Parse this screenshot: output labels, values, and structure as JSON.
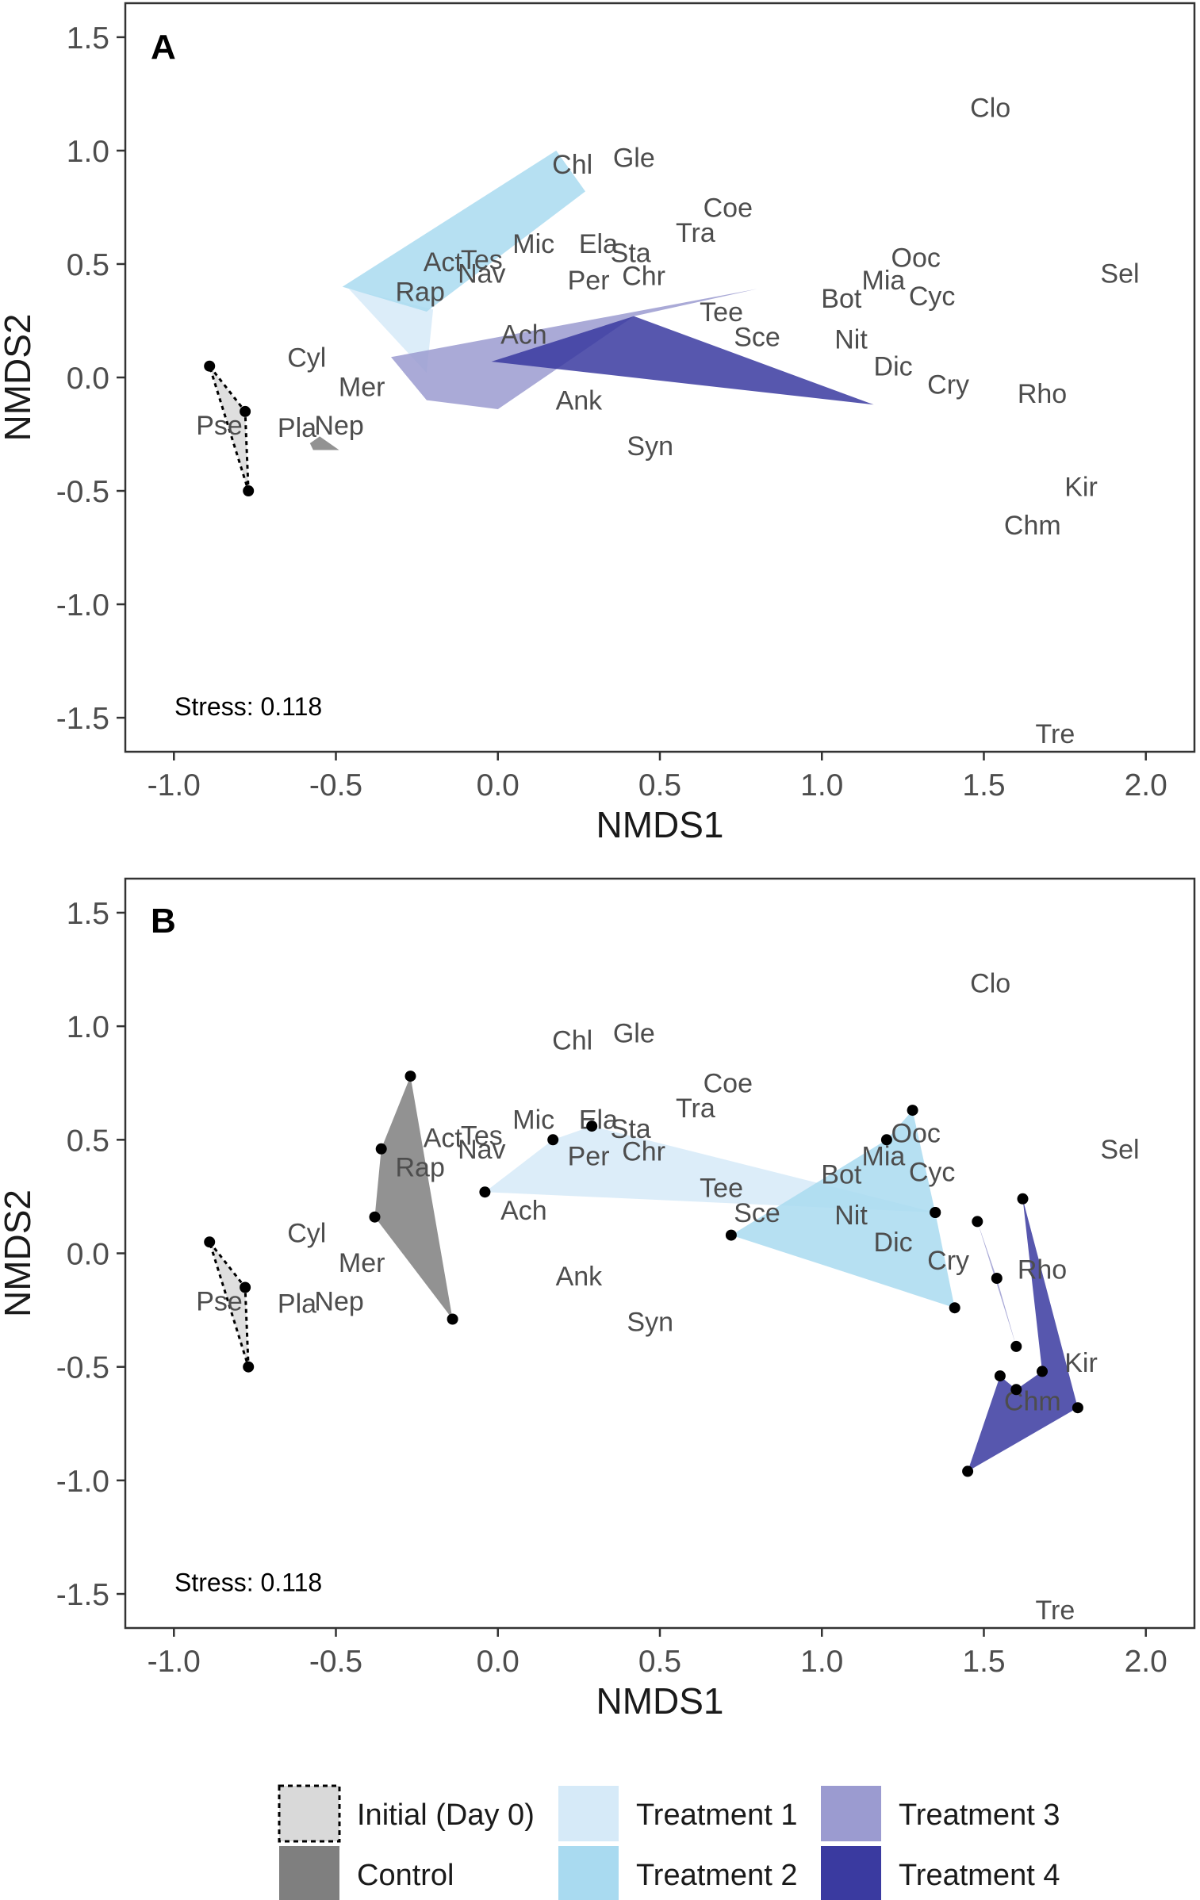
{
  "chart_data": [
    {
      "type": "scatter",
      "panel": "A",
      "xlabel": "NMDS1",
      "ylabel": "NMDS2",
      "xlim": [
        -1.15,
        2.15
      ],
      "ylim": [
        -1.65,
        1.65
      ],
      "xticks": [
        "-1.0",
        "-0.5",
        "0.0",
        "0.5",
        "1.0",
        "1.5",
        "2.0"
      ],
      "yticks": [
        "1.5",
        "1.0",
        "0.5",
        "0.0",
        "-0.5",
        "-1.0",
        "-1.5"
      ],
      "annotation": "Stress: 0.118",
      "grid": false,
      "species": [
        {
          "label": "Clo",
          "x": 1.52,
          "y": 1.19
        },
        {
          "label": "Chl",
          "x": 0.23,
          "y": 0.94
        },
        {
          "label": "Gle",
          "x": 0.42,
          "y": 0.97
        },
        {
          "label": "Coe",
          "x": 0.71,
          "y": 0.75
        },
        {
          "label": "Tra",
          "x": 0.61,
          "y": 0.64
        },
        {
          "label": "Mic",
          "x": 0.11,
          "y": 0.59
        },
        {
          "label": "Ela",
          "x": 0.31,
          "y": 0.59
        },
        {
          "label": "Sta",
          "x": 0.41,
          "y": 0.55
        },
        {
          "label": "Act",
          "x": -0.17,
          "y": 0.51
        },
        {
          "label": "Tes",
          "x": -0.05,
          "y": 0.52
        },
        {
          "label": "Nav",
          "x": -0.05,
          "y": 0.46
        },
        {
          "label": "Per",
          "x": 0.28,
          "y": 0.43
        },
        {
          "label": "Chr",
          "x": 0.45,
          "y": 0.45
        },
        {
          "label": "Rap",
          "x": -0.24,
          "y": 0.38
        },
        {
          "label": "Ooc",
          "x": 1.29,
          "y": 0.53
        },
        {
          "label": "Mia",
          "x": 1.19,
          "y": 0.43
        },
        {
          "label": "Cyc",
          "x": 1.34,
          "y": 0.36
        },
        {
          "label": "Bot",
          "x": 1.06,
          "y": 0.35
        },
        {
          "label": "Sel",
          "x": 1.92,
          "y": 0.46
        },
        {
          "label": "Tee",
          "x": 0.69,
          "y": 0.29
        },
        {
          "label": "Sce",
          "x": 0.8,
          "y": 0.18
        },
        {
          "label": "Ach",
          "x": 0.08,
          "y": 0.19
        },
        {
          "label": "Nit",
          "x": 1.09,
          "y": 0.17
        },
        {
          "label": "Cyl",
          "x": -0.59,
          "y": 0.09
        },
        {
          "label": "Mer",
          "x": -0.42,
          "y": -0.04
        },
        {
          "label": "Dic",
          "x": 1.22,
          "y": 0.05
        },
        {
          "label": "Cry",
          "x": 1.39,
          "y": -0.03
        },
        {
          "label": "Rho",
          "x": 1.68,
          "y": -0.07
        },
        {
          "label": "Ank",
          "x": 0.25,
          "y": -0.1
        },
        {
          "label": "Pse",
          "x": -0.86,
          "y": -0.21
        },
        {
          "label": "Pla",
          "x": -0.62,
          "y": -0.22
        },
        {
          "label": "Nep",
          "x": -0.49,
          "y": -0.21
        },
        {
          "label": "Syn",
          "x": 0.47,
          "y": -0.3
        },
        {
          "label": "Kir",
          "x": 1.8,
          "y": -0.48
        },
        {
          "label": "Chm",
          "x": 1.65,
          "y": -0.65
        },
        {
          "label": "Tre",
          "x": 1.72,
          "y": -1.57
        }
      ],
      "hulls": [
        {
          "group": "Initial (Day 0)",
          "fill": "#d9d9d9",
          "dashed": true,
          "show_points": true,
          "points": [
            [
              -0.89,
              0.05
            ],
            [
              -0.78,
              -0.15
            ],
            [
              -0.77,
              -0.5
            ]
          ]
        },
        {
          "group": "Control",
          "fill": "#7f7f7f",
          "dashed": false,
          "show_points": false,
          "points": [
            [
              -0.58,
              -0.29
            ],
            [
              -0.55,
              -0.26
            ],
            [
              -0.49,
              -0.32
            ],
            [
              -0.57,
              -0.32
            ]
          ]
        },
        {
          "group": "Treatment 1",
          "fill": "#d6eaf8",
          "dashed": false,
          "show_points": false,
          "points": [
            [
              -0.46,
              0.39
            ],
            [
              -0.22,
              0.02
            ],
            [
              -0.2,
              0.3
            ]
          ]
        },
        {
          "group": "Treatment 2",
          "fill": "#a9daf0",
          "dashed": false,
          "show_points": false,
          "points": [
            [
              -0.48,
              0.4
            ],
            [
              0.18,
              1.0
            ],
            [
              0.27,
              0.82
            ],
            [
              -0.22,
              0.29
            ]
          ]
        },
        {
          "group": "Treatment 3",
          "fill": "#9b9bd0",
          "dashed": false,
          "show_points": false,
          "points": [
            [
              -0.33,
              0.09
            ],
            [
              0.8,
              0.39
            ],
            [
              0.42,
              0.27
            ],
            [
              0.0,
              -0.14
            ],
            [
              -0.22,
              -0.1
            ]
          ]
        },
        {
          "group": "Treatment 4",
          "fill": "#3a3aa0",
          "dashed": false,
          "show_points": false,
          "points": [
            [
              -0.02,
              0.07
            ],
            [
              0.42,
              0.27
            ],
            [
              1.16,
              -0.12
            ]
          ]
        }
      ]
    },
    {
      "type": "scatter",
      "panel": "B",
      "xlabel": "NMDS1",
      "ylabel": "NMDS2",
      "xlim": [
        -1.15,
        2.15
      ],
      "ylim": [
        -1.65,
        1.65
      ],
      "xticks": [
        "-1.0",
        "-0.5",
        "0.0",
        "0.5",
        "1.0",
        "1.5",
        "2.0"
      ],
      "yticks": [
        "1.5",
        "1.0",
        "0.5",
        "0.0",
        "-0.5",
        "-1.0",
        "-1.5"
      ],
      "annotation": "Stress: 0.118",
      "grid": false,
      "species": [
        {
          "label": "Clo",
          "x": 1.52,
          "y": 1.19
        },
        {
          "label": "Chl",
          "x": 0.23,
          "y": 0.94
        },
        {
          "label": "Gle",
          "x": 0.42,
          "y": 0.97
        },
        {
          "label": "Coe",
          "x": 0.71,
          "y": 0.75
        },
        {
          "label": "Tra",
          "x": 0.61,
          "y": 0.64
        },
        {
          "label": "Mic",
          "x": 0.11,
          "y": 0.59
        },
        {
          "label": "Ela",
          "x": 0.31,
          "y": 0.59
        },
        {
          "label": "Sta",
          "x": 0.41,
          "y": 0.55
        },
        {
          "label": "Act",
          "x": -0.17,
          "y": 0.51
        },
        {
          "label": "Tes",
          "x": -0.05,
          "y": 0.52
        },
        {
          "label": "Nav",
          "x": -0.05,
          "y": 0.46
        },
        {
          "label": "Per",
          "x": 0.28,
          "y": 0.43
        },
        {
          "label": "Chr",
          "x": 0.45,
          "y": 0.45
        },
        {
          "label": "Rap",
          "x": -0.24,
          "y": 0.38
        },
        {
          "label": "Ooc",
          "x": 1.29,
          "y": 0.53
        },
        {
          "label": "Mia",
          "x": 1.19,
          "y": 0.43
        },
        {
          "label": "Cyc",
          "x": 1.34,
          "y": 0.36
        },
        {
          "label": "Bot",
          "x": 1.06,
          "y": 0.35
        },
        {
          "label": "Sel",
          "x": 1.92,
          "y": 0.46
        },
        {
          "label": "Tee",
          "x": 0.69,
          "y": 0.29
        },
        {
          "label": "Sce",
          "x": 0.8,
          "y": 0.18
        },
        {
          "label": "Ach",
          "x": 0.08,
          "y": 0.19
        },
        {
          "label": "Nit",
          "x": 1.09,
          "y": 0.17
        },
        {
          "label": "Cyl",
          "x": -0.59,
          "y": 0.09
        },
        {
          "label": "Mer",
          "x": -0.42,
          "y": -0.04
        },
        {
          "label": "Dic",
          "x": 1.22,
          "y": 0.05
        },
        {
          "label": "Cry",
          "x": 1.39,
          "y": -0.03
        },
        {
          "label": "Rho",
          "x": 1.68,
          "y": -0.07
        },
        {
          "label": "Ank",
          "x": 0.25,
          "y": -0.1
        },
        {
          "label": "Pse",
          "x": -0.86,
          "y": -0.21
        },
        {
          "label": "Pla",
          "x": -0.62,
          "y": -0.22
        },
        {
          "label": "Nep",
          "x": -0.49,
          "y": -0.21
        },
        {
          "label": "Syn",
          "x": 0.47,
          "y": -0.3
        },
        {
          "label": "Kir",
          "x": 1.8,
          "y": -0.48
        },
        {
          "label": "Chm",
          "x": 1.65,
          "y": -0.65
        },
        {
          "label": "Tre",
          "x": 1.72,
          "y": -1.57
        }
      ],
      "hulls": [
        {
          "group": "Initial (Day 0)",
          "fill": "#d9d9d9",
          "dashed": true,
          "show_points": true,
          "points": [
            [
              -0.89,
              0.05
            ],
            [
              -0.78,
              -0.15
            ],
            [
              -0.77,
              -0.5
            ]
          ]
        },
        {
          "group": "Control",
          "fill": "#7f7f7f",
          "dashed": false,
          "show_points": true,
          "points": [
            [
              -0.27,
              0.78
            ],
            [
              -0.36,
              0.46
            ],
            [
              -0.38,
              0.16
            ],
            [
              -0.14,
              -0.29
            ]
          ]
        },
        {
          "group": "Treatment 1",
          "fill": "#d6eaf8",
          "dashed": false,
          "show_points": true,
          "points": [
            [
              -0.04,
              0.27
            ],
            [
              0.17,
              0.5
            ],
            [
              0.29,
              0.56
            ],
            [
              1.35,
              0.18
            ]
          ]
        },
        {
          "group": "Treatment 2",
          "fill": "#a9daf0",
          "dashed": false,
          "show_points": true,
          "points": [
            [
              0.72,
              0.08
            ],
            [
              1.2,
              0.5
            ],
            [
              1.28,
              0.63
            ],
            [
              1.35,
              0.18
            ],
            [
              1.41,
              -0.24
            ]
          ]
        },
        {
          "group": "Treatment 3",
          "fill": "#9b9bd0",
          "dashed": false,
          "show_points": true,
          "points": [
            [
              1.48,
              0.14
            ],
            [
              1.54,
              -0.11
            ],
            [
              1.6,
              -0.41
            ]
          ]
        },
        {
          "group": "Treatment 4",
          "fill": "#3a3aa0",
          "dashed": false,
          "show_points": true,
          "points": [
            [
              1.62,
              0.24
            ],
            [
              1.79,
              -0.68
            ],
            [
              1.45,
              -0.96
            ],
            [
              1.55,
              -0.54
            ],
            [
              1.6,
              -0.6
            ],
            [
              1.68,
              -0.52
            ]
          ]
        }
      ]
    }
  ],
  "legend": {
    "placement": "bottom",
    "items": [
      {
        "label": "Initial (Day 0)",
        "fill": "#d9d9d9",
        "dashed": true
      },
      {
        "label": "Control",
        "fill": "#7f7f7f",
        "dashed": false
      },
      {
        "label": "Treatment 1",
        "fill": "#d6eaf8",
        "dashed": false
      },
      {
        "label": "Treatment 2",
        "fill": "#a9daf0",
        "dashed": false
      },
      {
        "label": "Treatment 3",
        "fill": "#9b9bd0",
        "dashed": false
      },
      {
        "label": "Treatment 4",
        "fill": "#3a3aa0",
        "dashed": false
      }
    ]
  }
}
